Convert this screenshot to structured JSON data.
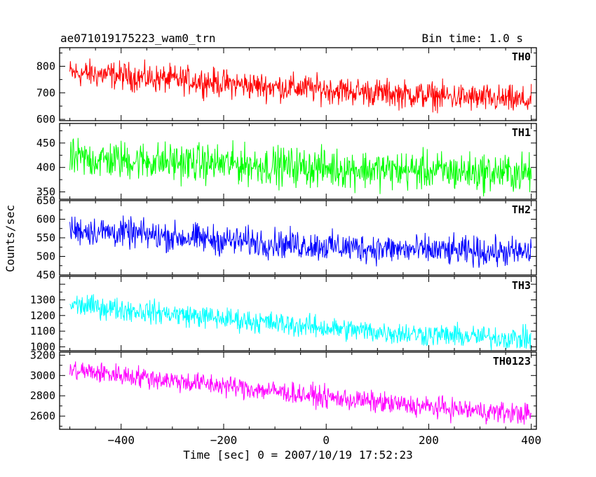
{
  "header": {
    "title": "ae071019175223_wam0_trn",
    "bin_time": "Bin time: 1.0 s"
  },
  "axes": {
    "ylabel": "Counts/sec",
    "xlabel": "Time [sec] 0 = 2007/10/19 17:52:23",
    "x_ticks": [
      "−400",
      "−200",
      "0",
      "200",
      "400"
    ]
  },
  "chart_data": [
    {
      "type": "line",
      "name": "TH0",
      "color": "#ff0000",
      "x_range": [
        -500,
        400
      ],
      "ylim": [
        595,
        870
      ],
      "y_ticks": [
        600,
        700,
        800
      ],
      "y_tick_labels": [
        "600",
        "700",
        "800"
      ],
      "x": [
        -500,
        -450,
        -400,
        -350,
        -300,
        -250,
        -200,
        -150,
        -100,
        -50,
        0,
        50,
        100,
        150,
        200,
        250,
        300,
        350,
        400
      ],
      "values": [
        775,
        770,
        765,
        755,
        750,
        745,
        735,
        728,
        722,
        718,
        712,
        706,
        700,
        695,
        690,
        684,
        679,
        674,
        668
      ],
      "noise_amplitude": 40
    },
    {
      "type": "line",
      "name": "TH1",
      "color": "#00ff00",
      "x_range": [
        -500,
        400
      ],
      "ylim": [
        335,
        490
      ],
      "y_ticks": [
        350,
        400,
        450
      ],
      "y_tick_labels": [
        "350",
        "400",
        "450"
      ],
      "x": [
        -500,
        -450,
        -400,
        -350,
        -300,
        -250,
        -200,
        -150,
        -100,
        -50,
        0,
        50,
        100,
        150,
        200,
        250,
        300,
        350,
        400
      ],
      "values": [
        418,
        416,
        415,
        413,
        411,
        409,
        407,
        405,
        403,
        401,
        399,
        397,
        395,
        394,
        393,
        391,
        390,
        389,
        388
      ],
      "noise_amplitude": 30
    },
    {
      "type": "line",
      "name": "TH2",
      "color": "#0000ff",
      "x_range": [
        -500,
        400
      ],
      "ylim": [
        450,
        650
      ],
      "y_ticks": [
        450,
        500,
        550,
        600,
        650
      ],
      "y_tick_labels": [
        "450",
        "500",
        "550",
        "600",
        "650"
      ],
      "x": [
        -500,
        -450,
        -400,
        -350,
        -300,
        -250,
        -200,
        -150,
        -100,
        -50,
        0,
        50,
        100,
        150,
        200,
        250,
        300,
        350,
        400
      ],
      "values": [
        572,
        568,
        563,
        558,
        553,
        548,
        543,
        539,
        535,
        531,
        527,
        524,
        521,
        518,
        516,
        514,
        512,
        511,
        510
      ],
      "noise_amplitude": 30
    },
    {
      "type": "line",
      "name": "TH3",
      "color": "#00ffff",
      "x_range": [
        -500,
        400
      ],
      "ylim": [
        975,
        1450
      ],
      "y_ticks": [
        1000,
        1100,
        1200,
        1300
      ],
      "y_tick_labels": [
        "1000",
        "1100",
        "1200",
        "1300"
      ],
      "x": [
        -500,
        -450,
        -400,
        -350,
        -300,
        -250,
        -200,
        -150,
        -100,
        -50,
        0,
        50,
        100,
        150,
        200,
        250,
        300,
        350,
        400
      ],
      "values": [
        1270,
        1255,
        1240,
        1225,
        1210,
        1195,
        1180,
        1165,
        1150,
        1135,
        1120,
        1108,
        1096,
        1086,
        1078,
        1070,
        1063,
        1057,
        1050
      ],
      "noise_amplitude": 55
    },
    {
      "type": "line",
      "name": "TH0123",
      "color": "#ff00ff",
      "x_range": [
        -500,
        400
      ],
      "ylim": [
        2470,
        3230
      ],
      "y_ticks": [
        2600,
        2800,
        3000,
        3200
      ],
      "y_tick_labels": [
        "2600",
        "2800",
        "3000",
        "3200"
      ],
      "x": [
        -500,
        -450,
        -400,
        -350,
        -300,
        -250,
        -200,
        -150,
        -100,
        -50,
        0,
        50,
        100,
        150,
        200,
        250,
        300,
        350,
        400
      ],
      "values": [
        3050,
        3030,
        3005,
        2980,
        2950,
        2925,
        2900,
        2870,
        2845,
        2815,
        2785,
        2760,
        2735,
        2710,
        2690,
        2670,
        2650,
        2635,
        2620
      ],
      "noise_amplitude": 80
    }
  ]
}
